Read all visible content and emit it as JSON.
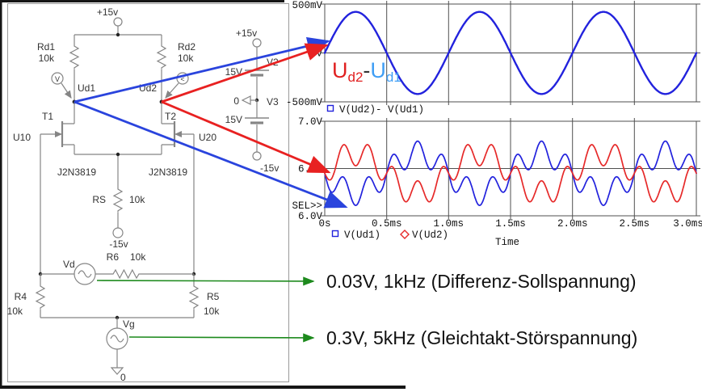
{
  "colors": {
    "trace_blue": "#2222dd",
    "trace_red": "#e62929",
    "label_red": "#e02020",
    "label_blue": "#3f9ef5",
    "label_dark": "#333333",
    "arrow_blue": "#2a44dd",
    "arrow_red": "#e82121",
    "arrow_green": "#1d8a1d",
    "wire_gray": "#858585",
    "schematic_text": "#333333",
    "grid_gray": "#4f4f4f"
  },
  "circuit": {
    "labels": {
      "vcc_top": "+15v",
      "rd1": "Rd1",
      "rd1_val": "10k",
      "rd2": "Rd2",
      "rd2_val": "10k",
      "ud1": "Ud1",
      "ud2": "Ud2",
      "probe_left": "V",
      "probe_right": "<",
      "t1": "T1",
      "t2": "T2",
      "u10": "U10",
      "u20": "U20",
      "jfet1": "J2N3819",
      "jfet2": "J2N3819",
      "rs": "RS",
      "rs_val": "10k",
      "vneg_mid": "-15v",
      "r6": "R6",
      "r6_val": "10k",
      "vd": "Vd",
      "r4": "R4",
      "r4_val": "10k",
      "r5": "R5",
      "r5_val": "10k",
      "vg": "Vg",
      "gnd0": "0",
      "v2_plus": "+15v",
      "v2": "V2",
      "v2_val": "15V",
      "v3_gnd": "0",
      "v3": "V3",
      "v3_val": "15V",
      "vneg_bot": "-15v"
    }
  },
  "chart_data": [
    {
      "type": "line",
      "title": "",
      "y_tick_labels": [
        "500mV",
        "0V",
        "-500mV"
      ],
      "ylim_V": [
        -0.5,
        0.5
      ],
      "x_range_ms": [
        0,
        3
      ],
      "grid_step_ms": 0.5,
      "legend": [
        {
          "marker": "square",
          "label": "V(Ud2)- V(Ud1)"
        }
      ],
      "overlay_label": {
        "u1": "U",
        "u1_sub": "d2",
        "minus": "-",
        "u2": "U",
        "u2_sub": "d1"
      },
      "series": [
        {
          "name": "V(Ud2)- V(Ud1)",
          "color_key": "trace_blue",
          "offset_V": 0,
          "components": [
            {
              "amplitude_V": 0.42,
              "frequency_Hz": 1000
            }
          ]
        }
      ]
    },
    {
      "type": "line",
      "title": "",
      "y_tick_labels": [
        "7.0V",
        "6.5V",
        "6.0V"
      ],
      "ylim_V": [
        6.0,
        7.0
      ],
      "x_range_ms": [
        0,
        3
      ],
      "grid_step_ms": 0.5,
      "x_tick_labels": [
        "0s",
        "0.5ms",
        "1.0ms",
        "1.5ms",
        "2.0ms",
        "2.5ms",
        "3.0ms"
      ],
      "xlabel": "Time",
      "sel_label": "SEL>>",
      "legend": [
        {
          "marker": "square",
          "label": "V(Ud1)"
        },
        {
          "marker": "diamond",
          "label": "V(Ud2)"
        }
      ],
      "series": [
        {
          "name": "V(Ud1)",
          "color_key": "trace_blue",
          "offset_V": 6.45,
          "components": [
            {
              "amplitude_V": -0.21,
              "frequency_Hz": 1000
            },
            {
              "amplitude_V": -0.13,
              "frequency_Hz": 5000
            }
          ]
        },
        {
          "name": "V(Ud2)",
          "color_key": "trace_red",
          "offset_V": 6.45,
          "components": [
            {
              "amplitude_V": 0.21,
              "frequency_Hz": 1000
            },
            {
              "amplitude_V": -0.13,
              "frequency_Hz": 5000
            }
          ]
        }
      ]
    }
  ],
  "annotations": {
    "line1": "0.03V, 1kHz (Differenz-Sollspannung)",
    "line2": "0.3V, 5kHz (Gleichtakt-Störspannung)"
  }
}
